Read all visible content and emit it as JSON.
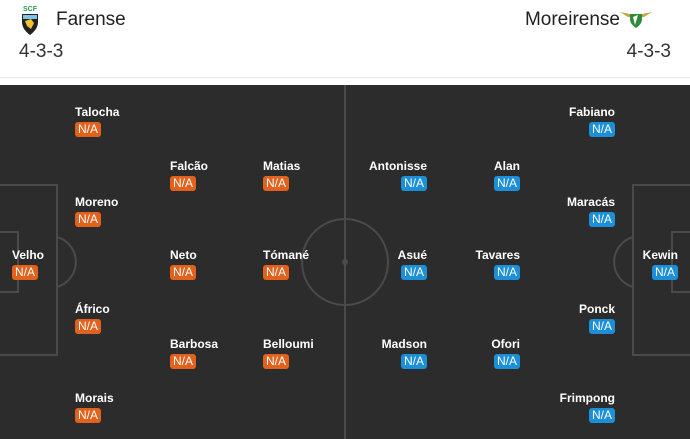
{
  "home": {
    "name": "Farense",
    "formation": "4-3-3",
    "color": "#e2611c",
    "players": [
      {
        "name": "Talocha",
        "rating": "N/A"
      },
      {
        "name": "Falcão",
        "rating": "N/A"
      },
      {
        "name": "Matias",
        "rating": "N/A"
      },
      {
        "name": "Moreno",
        "rating": "N/A"
      },
      {
        "name": "Velho",
        "rating": "N/A"
      },
      {
        "name": "Neto",
        "rating": "N/A"
      },
      {
        "name": "Tómané",
        "rating": "N/A"
      },
      {
        "name": "Áfrico",
        "rating": "N/A"
      },
      {
        "name": "Barbosa",
        "rating": "N/A"
      },
      {
        "name": "Belloumi",
        "rating": "N/A"
      },
      {
        "name": "Morais",
        "rating": "N/A"
      }
    ]
  },
  "away": {
    "name": "Moreirense",
    "formation": "4-3-3",
    "color": "#1b8fd8",
    "players": [
      {
        "name": "Fabiano",
        "rating": "N/A"
      },
      {
        "name": "Antonisse",
        "rating": "N/A"
      },
      {
        "name": "Alan",
        "rating": "N/A"
      },
      {
        "name": "Maracás",
        "rating": "N/A"
      },
      {
        "name": "Asué",
        "rating": "N/A"
      },
      {
        "name": "Tavares",
        "rating": "N/A"
      },
      {
        "name": "Kewin",
        "rating": "N/A"
      },
      {
        "name": "Ponck",
        "rating": "N/A"
      },
      {
        "name": "Madson",
        "rating": "N/A"
      },
      {
        "name": "Ofori",
        "rating": "N/A"
      },
      {
        "name": "Frimpong",
        "rating": "N/A"
      }
    ]
  }
}
